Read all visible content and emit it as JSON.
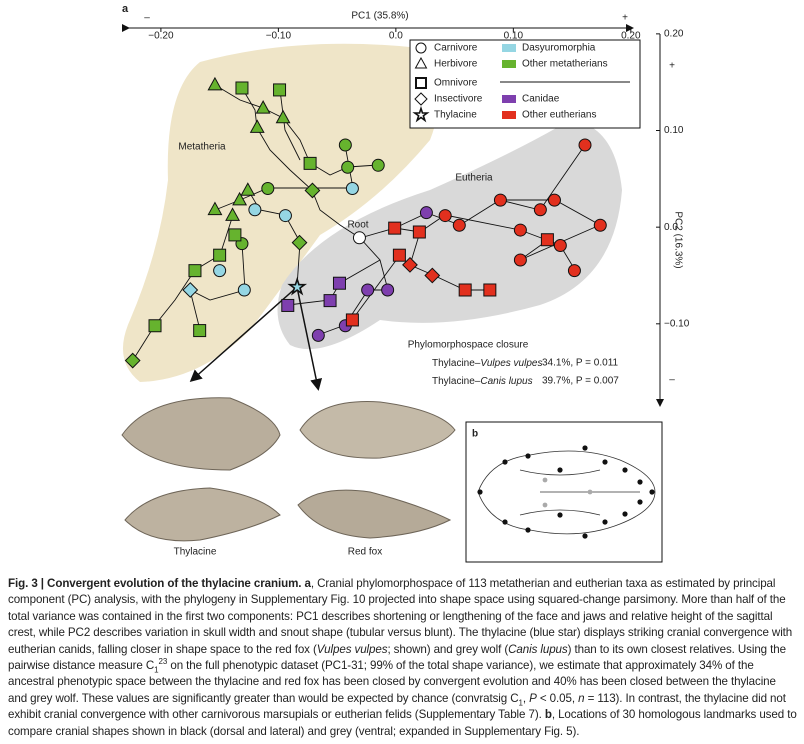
{
  "panel_a_label": "a",
  "panel_b_label": "b",
  "chart_data": {
    "type": "scatter",
    "xlabel": "PC1 (35.8%)",
    "ylabel": "PC2 (16.3%)",
    "x_plus": "+",
    "x_minus": "–",
    "y_plus": "+",
    "y_minus": "–",
    "xlim": [
      -0.228,
      0.201
    ],
    "ylim": [
      -0.184,
      0.204
    ],
    "xticks": [
      {
        "value": -0.2,
        "label": "−0.20"
      },
      {
        "value": -0.1,
        "label": "−0.10"
      },
      {
        "value": 0,
        "label": "0.0"
      },
      {
        "value": 0.1,
        "label": "0.10"
      },
      {
        "value": 0.2,
        "label": "0.20"
      }
    ],
    "yticks": [
      {
        "value": 0.2,
        "label": "0.20"
      },
      {
        "value": 0.1,
        "label": "0.10"
      },
      {
        "value": 0,
        "label": "0.0"
      },
      {
        "value": -0.1,
        "label": "−0.10"
      }
    ],
    "diets": [
      {
        "name": "Carnivore",
        "marker": "circle"
      },
      {
        "name": "Herbivore",
        "marker": "triangle"
      },
      {
        "name": "Omnivore",
        "marker": "square"
      },
      {
        "name": "Insectivore",
        "marker": "diamond"
      },
      {
        "name": "Thylacine",
        "marker": "star"
      }
    ],
    "series": [
      {
        "name": "Dasyuromorphia",
        "color": "#95d6e3",
        "x": [
          -0.12,
          -0.094,
          -0.037,
          -0.15,
          -0.129,
          -0.175,
          -0.084
        ],
        "values": [
          0.018,
          0.012,
          0.04,
          -0.045,
          -0.065,
          -0.065,
          -0.062
        ],
        "diet": [
          "Carnivore",
          "Carnivore",
          "Carnivore",
          "Carnivore",
          "Carnivore",
          "Insectivore",
          "Thylacine"
        ]
      },
      {
        "name": "Other metatherians",
        "color": "#66b32e",
        "x": [
          -0.154,
          -0.113,
          -0.118,
          -0.096,
          -0.126,
          -0.139,
          -0.154,
          -0.133,
          -0.041,
          -0.015,
          -0.043,
          -0.109,
          -0.131,
          -0.131,
          -0.099,
          -0.073,
          -0.137,
          -0.171,
          -0.205,
          -0.167,
          -0.15,
          -0.071,
          -0.082,
          -0.224
        ],
        "values": [
          0.147,
          0.123,
          0.103,
          0.113,
          0.038,
          0.012,
          0.018,
          0.028,
          0.062,
          0.064,
          0.085,
          0.04,
          -0.017,
          0.144,
          0.142,
          0.066,
          -0.008,
          -0.045,
          -0.102,
          -0.107,
          -0.029,
          0.038,
          -0.016,
          -0.138
        ],
        "diet": [
          "Herbivore",
          "Herbivore",
          "Herbivore",
          "Herbivore",
          "Herbivore",
          "Herbivore",
          "Herbivore",
          "Herbivore",
          "Carnivore",
          "Carnivore",
          "Carnivore",
          "Carnivore",
          "Carnivore",
          "Omnivore",
          "Omnivore",
          "Omnivore",
          "Omnivore",
          "Omnivore",
          "Omnivore",
          "Omnivore",
          "Omnivore",
          "Insectivore",
          "Insectivore",
          "Insectivore"
        ]
      },
      {
        "name": "Canidae",
        "color": "#7e3fae",
        "x": [
          0.026,
          -0.007,
          -0.024,
          -0.066,
          -0.043,
          -0.092,
          -0.048,
          -0.056
        ],
        "values": [
          0.015,
          -0.065,
          -0.065,
          -0.112,
          -0.102,
          -0.081,
          -0.058,
          -0.076
        ],
        "diet": [
          "Carnivore",
          "Carnivore",
          "Carnivore",
          "Carnivore",
          "Carnivore",
          "Omnivore",
          "Omnivore",
          "Omnivore"
        ]
      },
      {
        "name": "Other eutherians",
        "color": "#e2301e",
        "x": [
          0.161,
          0.089,
          0.123,
          0.106,
          0.14,
          0.152,
          0.054,
          0.042,
          0.135,
          0.106,
          0.174,
          -0.001,
          0.059,
          0.08,
          -0.037,
          0.003,
          0.129,
          0.02,
          0.031,
          0.012
        ],
        "values": [
          0.085,
          0.028,
          0.018,
          -0.003,
          -0.019,
          -0.045,
          0.002,
          0.012,
          0.028,
          -0.034,
          0.002,
          -0.001,
          -0.065,
          -0.065,
          -0.096,
          -0.029,
          -0.013,
          -0.005,
          -0.05,
          -0.039
        ],
        "diet": [
          "Carnivore",
          "Carnivore",
          "Carnivore",
          "Carnivore",
          "Carnivore",
          "Carnivore",
          "Carnivore",
          "Carnivore",
          "Carnivore",
          "Carnivore",
          "Carnivore",
          "Omnivore",
          "Omnivore",
          "Omnivore",
          "Omnivore",
          "Omnivore",
          "Omnivore",
          "Omnivore",
          "Insectivore",
          "Insectivore"
        ]
      }
    ],
    "root": {
      "text": "Root",
      "x": -0.031,
      "y": -0.011
    },
    "regions": [
      "Metatheria",
      "Eutheria"
    ],
    "closure": {
      "title": "Phylomorphospace closure",
      "rows": [
        {
          "pair": "Thylacine–",
          "taxon": "Vulpes vulpes",
          "stat": "34.1%, P = 0.011"
        },
        {
          "pair": "Thylacine–",
          "taxon": "Canis lupus",
          "stat": "39.7%, P = 0.007"
        }
      ]
    }
  },
  "photo_labels": [
    "Thylacine",
    "Red fox"
  ],
  "caption": [
    {
      "text": "Fig. 3 | Convergent evolution of the thylacine cranium. a",
      "style": "b"
    },
    {
      "text": ", Cranial phylomorphospace of 113 metatherian and eutherian taxa as estimated by principal component (PC) analysis, with the phylogeny in Supplementary Fig. 10 projected into shape space using squared-change parsimony. More than half of the total variance was contained in the first two components: PC1 describes shortening or lengthening of the face and jaws and relative height of the sagittal crest, while PC2 describes variation in skull width and snout shape (tubular versus blunt). The thylacine (blue star) displays striking cranial convergence with eutherian canids, falling closer in shape space to the red fox (",
      "style": "t"
    },
    {
      "text": "Vulpes vulpes",
      "style": "i"
    },
    {
      "text": "; shown) and grey wolf (",
      "style": "t"
    },
    {
      "text": "Canis lupus",
      "style": "i"
    },
    {
      "text": ") than to its own closest relatives. Using the pairwise distance measure C",
      "style": "t"
    },
    {
      "text": "1",
      "style": "sub"
    },
    {
      "text": "23",
      "style": "sup"
    },
    {
      "text": " on the full phenotypic dataset (PC1-31; 99% of the total shape variance), we estimate that approximately 34% of the ancestral phenotypic space between the thylacine and red fox has been closed by convergent evolution and 40% has been closed between the thylacine and grey wolf. These values are significantly greater than would be expected by chance (convratsig C",
      "style": "t"
    },
    {
      "text": "1",
      "style": "sub"
    },
    {
      "text": ", ",
      "style": "t"
    },
    {
      "text": "P",
      "style": "i"
    },
    {
      "text": " < 0.05, ",
      "style": "t"
    },
    {
      "text": "n",
      "style": "i"
    },
    {
      "text": " = 113). In contrast, the thylacine did not exhibit cranial convergence with other carnivorous marsupials or eutherian felids (Supplementary Table 7). ",
      "style": "t"
    },
    {
      "text": "b",
      "style": "b"
    },
    {
      "text": ", Locations of 30 homologous landmarks used to compare cranial shapes shown in black (dorsal and lateral) and grey (ventral; expanded in Supplementary Fig. 5).",
      "style": "t"
    }
  ]
}
